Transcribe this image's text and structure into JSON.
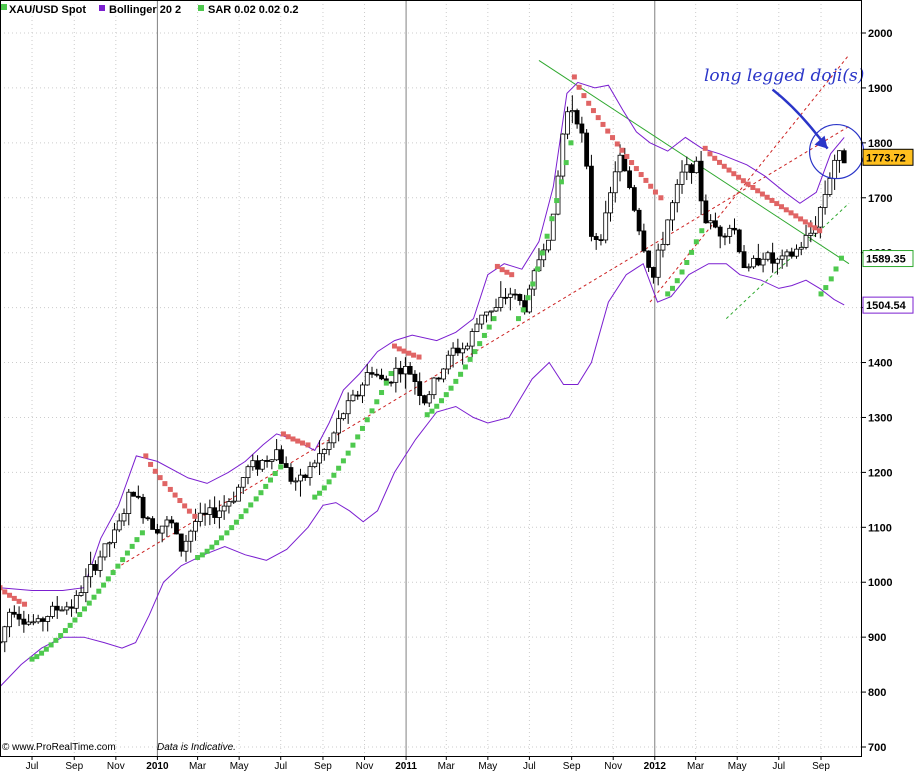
{
  "chart_data": {
    "type": "candlestick",
    "title": "XAU/USD Spot",
    "indicators": [
      {
        "name": "Bollinger 20 2",
        "color": "#7b1fd0"
      },
      {
        "name": "SAR 0.02 0.02 0.2",
        "color": "#4ec94e"
      }
    ],
    "yaxis": {
      "min": 700,
      "max": 2000,
      "ticks": [
        700,
        800,
        900,
        1000,
        1100,
        1200,
        1300,
        1400,
        1500,
        1600,
        1700,
        1800,
        1900,
        2000
      ],
      "position": "right"
    },
    "xaxis": {
      "start": "2009-05-15",
      "end": "2012-10-15",
      "ticks": [
        {
          "label": "Jul",
          "date": "2009-07-01",
          "bold": false
        },
        {
          "label": "Sep",
          "date": "2009-09-01",
          "bold": false
        },
        {
          "label": "Nov",
          "date": "2009-11-01",
          "bold": false
        },
        {
          "label": "2010",
          "date": "2010-01-01",
          "bold": true
        },
        {
          "label": "Mar",
          "date": "2010-03-01",
          "bold": false
        },
        {
          "label": "May",
          "date": "2010-05-01",
          "bold": false
        },
        {
          "label": "Jul",
          "date": "2010-07-01",
          "bold": false
        },
        {
          "label": "Sep",
          "date": "2010-09-01",
          "bold": false
        },
        {
          "label": "Nov",
          "date": "2010-11-01",
          "bold": false
        },
        {
          "label": "2011",
          "date": "2011-01-01",
          "bold": true
        },
        {
          "label": "Mar",
          "date": "2011-03-01",
          "bold": false
        },
        {
          "label": "May",
          "date": "2011-05-01",
          "bold": false
        },
        {
          "label": "Jul",
          "date": "2011-07-01",
          "bold": false
        },
        {
          "label": "Sep",
          "date": "2011-09-01",
          "bold": false
        },
        {
          "label": "Nov",
          "date": "2011-11-01",
          "bold": false
        },
        {
          "label": "2012",
          "date": "2012-01-01",
          "bold": true
        },
        {
          "label": "Mar",
          "date": "2012-03-01",
          "bold": false
        },
        {
          "label": "May",
          "date": "2012-05-01",
          "bold": false
        },
        {
          "label": "Jul",
          "date": "2012-07-01",
          "bold": false
        },
        {
          "label": "Sep",
          "date": "2012-09-01",
          "bold": false
        }
      ]
    },
    "year_dividers": [
      "2010-01-01",
      "2011-01-01",
      "2012-01-01"
    ],
    "price_trace": [
      [
        "2009-05-15",
        890
      ],
      [
        "2009-06-01",
        960
      ],
      [
        "2009-06-20",
        930
      ],
      [
        "2009-07-10",
        925
      ],
      [
        "2009-08-01",
        950
      ],
      [
        "2009-09-01",
        960
      ],
      [
        "2009-09-20",
        1010
      ],
      [
        "2009-10-10",
        1050
      ],
      [
        "2009-11-01",
        1090
      ],
      [
        "2009-11-25",
        1170
      ],
      [
        "2009-12-10",
        1130
      ],
      [
        "2009-12-30",
        1100
      ],
      [
        "2010-01-20",
        1110
      ],
      [
        "2010-02-05",
        1060
      ],
      [
        "2010-02-25",
        1110
      ],
      [
        "2010-03-15",
        1120
      ],
      [
        "2010-04-05",
        1135
      ],
      [
        "2010-04-25",
        1160
      ],
      [
        "2010-05-15",
        1210
      ],
      [
        "2010-06-05",
        1220
      ],
      [
        "2010-06-25",
        1240
      ],
      [
        "2010-07-15",
        1190
      ],
      [
        "2010-07-30",
        1180
      ],
      [
        "2010-08-20",
        1220
      ],
      [
        "2010-09-10",
        1250
      ],
      [
        "2010-10-01",
        1310
      ],
      [
        "2010-10-20",
        1340
      ],
      [
        "2010-11-10",
        1390
      ],
      [
        "2010-11-30",
        1360
      ],
      [
        "2010-12-20",
        1390
      ],
      [
        "2011-01-10",
        1380
      ],
      [
        "2011-01-28",
        1330
      ],
      [
        "2011-02-20",
        1380
      ],
      [
        "2011-03-10",
        1420
      ],
      [
        "2011-04-01",
        1430
      ],
      [
        "2011-04-25",
        1500
      ],
      [
        "2011-05-10",
        1490
      ],
      [
        "2011-06-01",
        1530
      ],
      [
        "2011-06-25",
        1500
      ],
      [
        "2011-07-15",
        1590
      ],
      [
        "2011-08-05",
        1660
      ],
      [
        "2011-08-22",
        1850
      ],
      [
        "2011-09-05",
        1870
      ],
      [
        "2011-09-20",
        1790
      ],
      [
        "2011-10-01",
        1620
      ],
      [
        "2011-10-20",
        1650
      ],
      [
        "2011-11-08",
        1780
      ],
      [
        "2011-11-25",
        1720
      ],
      [
        "2011-12-10",
        1640
      ],
      [
        "2011-12-29",
        1550
      ],
      [
        "2012-01-20",
        1660
      ],
      [
        "2012-02-10",
        1740
      ],
      [
        "2012-02-28",
        1770
      ],
      [
        "2012-03-15",
        1660
      ],
      [
        "2012-04-05",
        1640
      ],
      [
        "2012-04-25",
        1650
      ],
      [
        "2012-05-15",
        1560
      ],
      [
        "2012-06-05",
        1600
      ],
      [
        "2012-06-25",
        1580
      ],
      [
        "2012-07-15",
        1590
      ],
      [
        "2012-08-01",
        1610
      ],
      [
        "2012-08-20",
        1640
      ],
      [
        "2012-09-05",
        1700
      ],
      [
        "2012-09-20",
        1770
      ],
      [
        "2012-10-05",
        1775
      ]
    ],
    "bollinger_upper": [
      [
        "2009-05-15",
        990
      ],
      [
        "2009-07-01",
        985
      ],
      [
        "2009-08-15",
        985
      ],
      [
        "2009-09-15",
        990
      ],
      [
        "2009-10-10",
        1080
      ],
      [
        "2009-11-05",
        1140
      ],
      [
        "2009-12-01",
        1230
      ],
      [
        "2010-01-01",
        1220
      ],
      [
        "2010-02-15",
        1190
      ],
      [
        "2010-03-15",
        1180
      ],
      [
        "2010-04-15",
        1200
      ],
      [
        "2010-05-10",
        1220
      ],
      [
        "2010-06-05",
        1250
      ],
      [
        "2010-06-25",
        1270
      ],
      [
        "2010-07-20",
        1260
      ],
      [
        "2010-08-20",
        1240
      ],
      [
        "2010-09-10",
        1290
      ],
      [
        "2010-10-01",
        1350
      ],
      [
        "2010-10-25",
        1380
      ],
      [
        "2010-11-20",
        1420
      ],
      [
        "2010-12-15",
        1440
      ],
      [
        "2011-01-10",
        1450
      ],
      [
        "2011-02-15",
        1440
      ],
      [
        "2011-03-15",
        1455
      ],
      [
        "2011-04-10",
        1480
      ],
      [
        "2011-05-01",
        1560
      ],
      [
        "2011-05-25",
        1580
      ],
      [
        "2011-06-20",
        1570
      ],
      [
        "2011-07-15",
        1620
      ],
      [
        "2011-08-05",
        1720
      ],
      [
        "2011-08-25",
        1890
      ],
      [
        "2011-09-10",
        1910
      ],
      [
        "2011-10-05",
        1900
      ],
      [
        "2011-10-25",
        1905
      ],
      [
        "2011-11-15",
        1860
      ],
      [
        "2011-12-05",
        1820
      ],
      [
        "2011-12-25",
        1800
      ],
      [
        "2012-01-20",
        1785
      ],
      [
        "2012-02-15",
        1810
      ],
      [
        "2012-03-10",
        1790
      ],
      [
        "2012-04-05",
        1780
      ],
      [
        "2012-04-25",
        1770
      ],
      [
        "2012-05-15",
        1760
      ],
      [
        "2012-06-10",
        1740
      ],
      [
        "2012-07-10",
        1710
      ],
      [
        "2012-08-01",
        1690
      ],
      [
        "2012-08-25",
        1710
      ],
      [
        "2012-09-15",
        1780
      ],
      [
        "2012-10-05",
        1810
      ]
    ],
    "bollinger_lower": [
      [
        "2009-05-15",
        810
      ],
      [
        "2009-06-15",
        850
      ],
      [
        "2009-07-15",
        880
      ],
      [
        "2009-08-15",
        900
      ],
      [
        "2009-09-15",
        900
      ],
      [
        "2009-10-15",
        890
      ],
      [
        "2009-11-10",
        880
      ],
      [
        "2009-11-30",
        890
      ],
      [
        "2009-12-20",
        940
      ],
      [
        "2010-01-10",
        1000
      ],
      [
        "2010-02-05",
        1030
      ],
      [
        "2010-03-10",
        1050
      ],
      [
        "2010-04-10",
        1065
      ],
      [
        "2010-05-10",
        1050
      ],
      [
        "2010-06-10",
        1040
      ],
      [
        "2010-07-10",
        1060
      ],
      [
        "2010-08-10",
        1100
      ],
      [
        "2010-09-01",
        1140
      ],
      [
        "2010-09-20",
        1145
      ],
      [
        "2010-10-10",
        1130
      ],
      [
        "2010-10-30",
        1110
      ],
      [
        "2010-11-20",
        1130
      ],
      [
        "2010-12-15",
        1200
      ],
      [
        "2011-01-15",
        1260
      ],
      [
        "2011-02-15",
        1310
      ],
      [
        "2011-03-15",
        1320
      ],
      [
        "2011-04-10",
        1300
      ],
      [
        "2011-05-01",
        1290
      ],
      [
        "2011-06-01",
        1300
      ],
      [
        "2011-07-05",
        1370
      ],
      [
        "2011-07-30",
        1400
      ],
      [
        "2011-08-20",
        1360
      ],
      [
        "2011-09-10",
        1360
      ],
      [
        "2011-09-30",
        1400
      ],
      [
        "2011-10-25",
        1510
      ],
      [
        "2011-11-20",
        1560
      ],
      [
        "2011-12-15",
        1580
      ],
      [
        "2012-01-05",
        1510
      ],
      [
        "2012-01-25",
        1520
      ],
      [
        "2012-02-20",
        1560
      ],
      [
        "2012-03-20",
        1580
      ],
      [
        "2012-04-15",
        1580
      ],
      [
        "2012-05-05",
        1560
      ],
      [
        "2012-06-05",
        1550
      ],
      [
        "2012-07-01",
        1535
      ],
      [
        "2012-07-20",
        1540
      ],
      [
        "2012-08-10",
        1550
      ],
      [
        "2012-08-30",
        1535
      ],
      [
        "2012-09-20",
        1515
      ],
      [
        "2012-10-05",
        1505
      ]
    ],
    "sar_segments": [
      {
        "trend": "down",
        "start": "2009-05-15",
        "end": "2009-06-20",
        "from": 990,
        "to": 960
      },
      {
        "trend": "up",
        "start": "2009-07-01",
        "end": "2009-12-10",
        "from": 860,
        "to": 1090
      },
      {
        "trend": "down",
        "start": "2009-12-15",
        "end": "2010-02-25",
        "from": 1230,
        "to": 1120
      },
      {
        "trend": "up",
        "start": "2010-03-01",
        "end": "2010-07-01",
        "from": 1045,
        "to": 1210
      },
      {
        "trend": "down",
        "start": "2010-07-05",
        "end": "2010-08-10",
        "from": 1270,
        "to": 1250
      },
      {
        "trend": "up",
        "start": "2010-08-20",
        "end": "2010-12-10",
        "from": 1155,
        "to": 1380
      },
      {
        "trend": "down",
        "start": "2010-12-15",
        "end": "2011-01-20",
        "from": 1430,
        "to": 1410
      },
      {
        "trend": "up",
        "start": "2011-02-01",
        "end": "2011-05-10",
        "from": 1305,
        "to": 1480
      },
      {
        "trend": "down",
        "start": "2011-05-15",
        "end": "2011-06-05",
        "from": 1575,
        "to": 1560
      },
      {
        "trend": "up",
        "start": "2011-06-15",
        "end": "2011-08-31",
        "from": 1480,
        "to": 1800
      },
      {
        "trend": "down",
        "start": "2011-09-05",
        "end": "2012-01-10",
        "from": 1920,
        "to": 1700
      },
      {
        "trend": "up",
        "start": "2012-01-20",
        "end": "2012-03-10",
        "from": 1525,
        "to": 1640
      },
      {
        "trend": "down",
        "start": "2012-03-15",
        "end": "2012-08-30",
        "from": 1790,
        "to": 1640
      },
      {
        "trend": "up",
        "start": "2012-09-01",
        "end": "2012-10-01",
        "from": 1525,
        "to": 1590
      }
    ],
    "trendlines": [
      {
        "style": "solid",
        "color": "#2ea82e",
        "from": [
          "2011-07-15",
          1950
        ],
        "to": [
          "2012-10-12",
          1580
        ]
      },
      {
        "style": "dashed",
        "color": "#cc2222",
        "from": [
          "2009-10-25",
          1020
        ],
        "to": [
          "2012-10-12",
          1830
        ]
      },
      {
        "style": "dashed",
        "color": "#cc2222",
        "from": [
          "2011-12-25",
          1510
        ],
        "to": [
          "2012-10-12",
          1960
        ]
      },
      {
        "style": "dashed",
        "color": "#2ea82e",
        "from": [
          "2012-04-15",
          1480
        ],
        "to": [
          "2012-10-12",
          1690
        ]
      }
    ],
    "price_labels": [
      {
        "text": "1773.72",
        "value": 1773.72,
        "bg": "#ffc01f",
        "border": "#000000"
      },
      {
        "text": "1589.35",
        "value": 1589.35,
        "bg": "#ffffff",
        "border": "#2ea82e"
      },
      {
        "text": "1504.54",
        "value": 1504.54,
        "bg": "#ffffff",
        "border": "#7b1fd0"
      }
    ],
    "annotation": {
      "text": "long legged doji(s)",
      "color": "#2a35c8",
      "target_date": "2012-09-15",
      "target_value": 1775
    }
  },
  "footer": {
    "copyright": "©  www.ProRealTime.com",
    "note": "Data is Indicative."
  },
  "colors": {
    "candle": "#000000",
    "sar_up": "#4ec94e",
    "sar_down": "#e06464",
    "bollinger": "#7b1fd0",
    "grid": "#cccccc",
    "year_line": "#808080"
  }
}
